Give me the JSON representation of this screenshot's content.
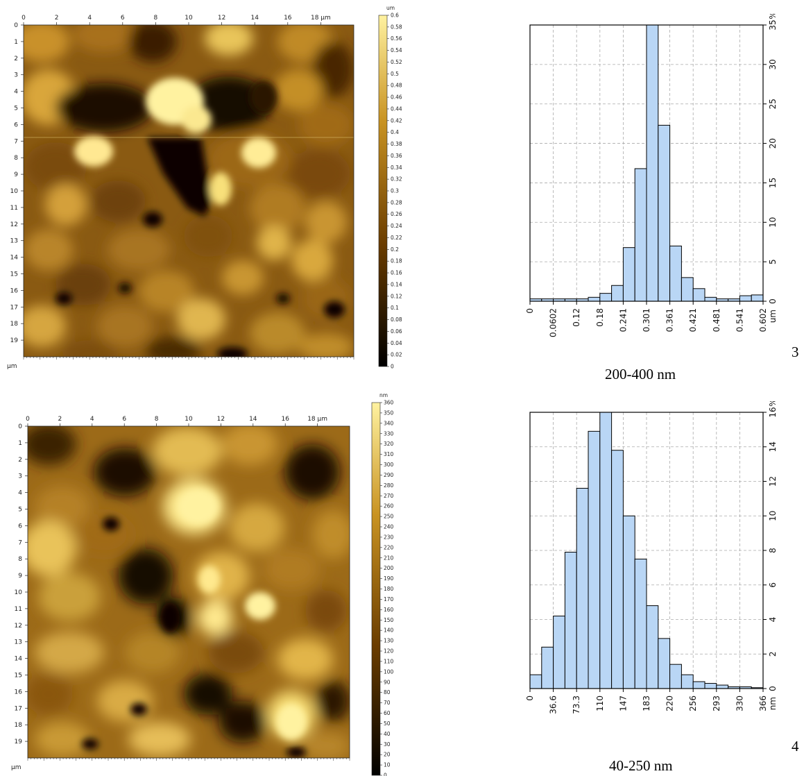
{
  "chart_data": [
    {
      "type": "heatmap",
      "title": "",
      "x_ticks": [
        "0",
        "2",
        "4",
        "6",
        "8",
        "10",
        "12",
        "14",
        "16",
        "18 µm"
      ],
      "y_ticks": [
        "0",
        "1",
        "2",
        "3",
        "4",
        "5",
        "6",
        "7",
        "8",
        "9",
        "10",
        "11",
        "12",
        "13",
        "14",
        "15",
        "16",
        "17",
        "18",
        "19"
      ],
      "axis_unit": "µm",
      "xlim": [
        0,
        20
      ],
      "ylim": [
        0,
        20
      ],
      "colorbar": {
        "unit": "um",
        "ticks": [
          "0",
          "0.02",
          "0.04",
          "0.06",
          "0.08",
          "0.1",
          "0.12",
          "0.14",
          "0.16",
          "0.18",
          "0.2",
          "0.22",
          "0.24",
          "0.26",
          "0.28",
          "0.3",
          "0.32",
          "0.34",
          "0.36",
          "0.38",
          "0.4",
          "0.42",
          "0.44",
          "0.46",
          "0.48",
          "0.5",
          "0.52",
          "0.54",
          "0.56",
          "0.58",
          "0.6"
        ],
        "range": [
          0,
          0.6
        ],
        "colors": [
          "#000000",
          "#6b3d00",
          "#c08a1e",
          "#fff2a0"
        ]
      }
    },
    {
      "type": "bar",
      "title": "",
      "xlabel": "um",
      "ylabel": "%",
      "x_tick_labels": [
        "0",
        "0.0602",
        "0.12",
        "0.18",
        "0.241",
        "0.301",
        "0.361",
        "0.421",
        "0.481",
        "0.541",
        "0.602"
      ],
      "y_tick_labels": [
        "0",
        "5",
        "10",
        "15",
        "20",
        "25",
        "30",
        "35"
      ],
      "xlim": [
        0,
        0.602
      ],
      "ylim": [
        0,
        35
      ],
      "grid": true,
      "bar_color": "#b9d6f5",
      "bin_edges": [
        0,
        0.0301,
        0.0602,
        0.0903,
        0.1204,
        0.1505,
        0.1806,
        0.2107,
        0.2408,
        0.2709,
        0.301,
        0.3311,
        0.3612,
        0.3913,
        0.4214,
        0.4515,
        0.4816,
        0.5117,
        0.5418,
        0.5719,
        0.602
      ],
      "values": [
        0.3,
        0.3,
        0.3,
        0.3,
        0.3,
        0.5,
        1.0,
        2.0,
        6.8,
        16.8,
        38.0,
        22.3,
        7.0,
        3.0,
        1.6,
        0.5,
        0.3,
        0.3,
        0.7,
        0.8
      ],
      "caption": "200-400 nm",
      "panel_number": "3"
    },
    {
      "type": "heatmap",
      "title": "",
      "x_ticks": [
        "0",
        "2",
        "4",
        "6",
        "8",
        "10",
        "12",
        "14",
        "16",
        "18 µm"
      ],
      "y_ticks": [
        "0",
        "1",
        "2",
        "3",
        "4",
        "5",
        "6",
        "7",
        "8",
        "9",
        "10",
        "11",
        "12",
        "13",
        "14",
        "15",
        "16",
        "17",
        "18",
        "19"
      ],
      "axis_unit": "µm",
      "xlim": [
        0,
        20
      ],
      "ylim": [
        0,
        20
      ],
      "colorbar": {
        "unit": "nm",
        "ticks": [
          "0",
          "10",
          "20",
          "30",
          "40",
          "50",
          "60",
          "70",
          "80",
          "90",
          "100",
          "110",
          "120",
          "130",
          "140",
          "150",
          "160",
          "170",
          "180",
          "190",
          "200",
          "210",
          "220",
          "230",
          "240",
          "250",
          "260",
          "270",
          "280",
          "290",
          "300",
          "310",
          "320",
          "330",
          "340",
          "350",
          "360"
        ],
        "range": [
          0,
          366
        ],
        "colors": [
          "#000000",
          "#6b3d00",
          "#c08a1e",
          "#fff2a0"
        ]
      }
    },
    {
      "type": "bar",
      "title": "",
      "xlabel": "nm",
      "ylabel": "%",
      "x_tick_labels": [
        "0",
        "36.6",
        "73.3",
        "110",
        "147",
        "183",
        "220",
        "256",
        "293",
        "330",
        "366"
      ],
      "y_tick_labels": [
        "0",
        "2",
        "4",
        "6",
        "8",
        "10",
        "12",
        "14",
        "16"
      ],
      "xlim": [
        0,
        366
      ],
      "ylim": [
        0,
        16
      ],
      "grid": true,
      "bar_color": "#b9d6f5",
      "bin_edges": [
        0,
        18.3,
        36.6,
        54.9,
        73.2,
        91.5,
        109.8,
        128.1,
        146.4,
        164.7,
        183,
        201.3,
        219.6,
        237.9,
        256.2,
        274.5,
        292.8,
        311.1,
        329.4,
        347.7,
        366
      ],
      "values": [
        0.8,
        2.4,
        4.2,
        7.9,
        11.6,
        14.9,
        16.5,
        13.8,
        10.0,
        7.5,
        4.8,
        2.9,
        1.4,
        0.8,
        0.4,
        0.3,
        0.2,
        0.1,
        0.1,
        0.05
      ],
      "caption": "40-250 nm",
      "panel_number": "4"
    }
  ]
}
